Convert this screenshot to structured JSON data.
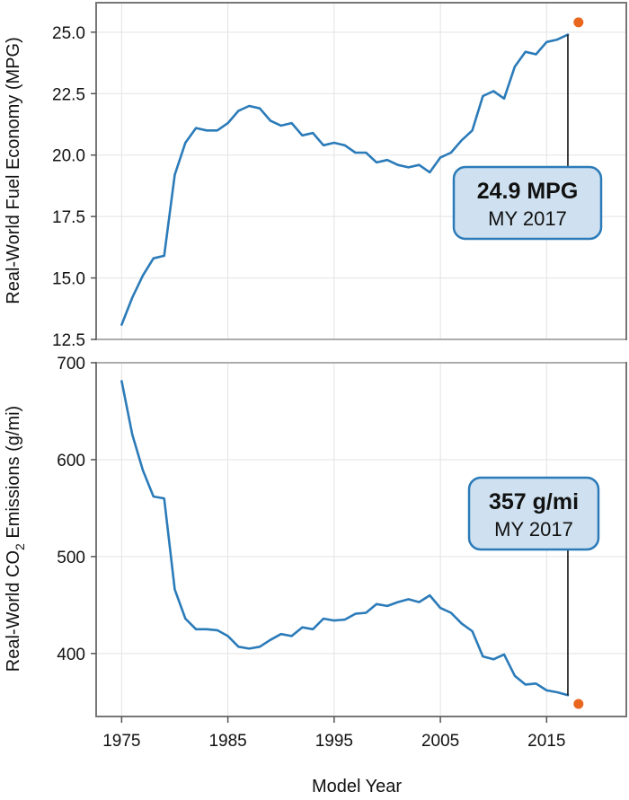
{
  "chart_data": [
    {
      "type": "line",
      "ylabel": "Real-World Fuel Economy (MPG)",
      "ylim": [
        12.5,
        26.2
      ],
      "yticks": [
        "12.5",
        "15.0",
        "17.5",
        "20.0",
        "22.5",
        "25.0"
      ],
      "grid": true,
      "series": [
        {
          "x": [
            1975,
            1976,
            1977,
            1978,
            1979,
            1980,
            1981,
            1982,
            1983,
            1984,
            1985,
            1986,
            1987,
            1988,
            1989,
            1990,
            1991,
            1992,
            1993,
            1994,
            1995,
            1996,
            1997,
            1998,
            1999,
            2000,
            2001,
            2002,
            2003,
            2004,
            2005,
            2006,
            2007,
            2008,
            2009,
            2010,
            2011,
            2012,
            2013,
            2014,
            2015,
            2016,
            2017
          ],
          "y": [
            13.1,
            14.2,
            15.1,
            15.8,
            15.9,
            19.2,
            20.5,
            21.1,
            21.0,
            21.0,
            21.3,
            21.8,
            22.0,
            21.9,
            21.4,
            21.2,
            21.3,
            20.8,
            20.9,
            20.4,
            20.5,
            20.4,
            20.1,
            20.1,
            19.7,
            19.8,
            19.6,
            19.5,
            19.6,
            19.3,
            19.9,
            20.1,
            20.6,
            21.0,
            22.4,
            22.6,
            22.3,
            23.6,
            24.2,
            24.1,
            24.6,
            24.7,
            24.9
          ],
          "color": "#2b7bb9"
        }
      ],
      "projection": {
        "x": 2018,
        "y": 25.4,
        "color": "#e8661e"
      },
      "callout": {
        "value": "24.9 MPG",
        "label": "MY 2017"
      }
    },
    {
      "type": "line",
      "xlabel": "Model Year",
      "ylabel": "Real-World CO2 Emissions (g/mi)",
      "ylabel_main": "Real-World CO",
      "ylabel_sub": "2",
      "ylabel_tail": " Emissions (g/mi)",
      "ylim": [
        335,
        700
      ],
      "yticks": [
        "400",
        "500",
        "600",
        "700"
      ],
      "xlim": [
        1972.6,
        2022.5
      ],
      "xticks": [
        "1975",
        "1985",
        "1995",
        "2005",
        "2015"
      ],
      "grid": true,
      "series": [
        {
          "x": [
            1975,
            1976,
            1977,
            1978,
            1979,
            1980,
            1981,
            1982,
            1983,
            1984,
            1985,
            1986,
            1987,
            1988,
            1989,
            1990,
            1991,
            1992,
            1993,
            1994,
            1995,
            1996,
            1997,
            1998,
            1999,
            2000,
            2001,
            2002,
            2003,
            2004,
            2005,
            2006,
            2007,
            2008,
            2009,
            2010,
            2011,
            2012,
            2013,
            2014,
            2015,
            2016,
            2017
          ],
          "y": [
            681,
            626,
            589,
            562,
            560,
            466,
            436,
            425,
            425,
            424,
            418,
            407,
            405,
            407,
            414,
            420,
            418,
            427,
            425,
            436,
            434,
            435,
            441,
            442,
            451,
            449,
            453,
            456,
            453,
            460,
            447,
            442,
            431,
            423,
            397,
            394,
            399,
            377,
            368,
            369,
            362,
            360,
            357
          ],
          "color": "#2b7bb9"
        }
      ],
      "projection": {
        "x": 2018,
        "y": 348,
        "color": "#e8661e"
      },
      "callout": {
        "value": "357 g/mi",
        "label": "MY 2017"
      }
    }
  ]
}
